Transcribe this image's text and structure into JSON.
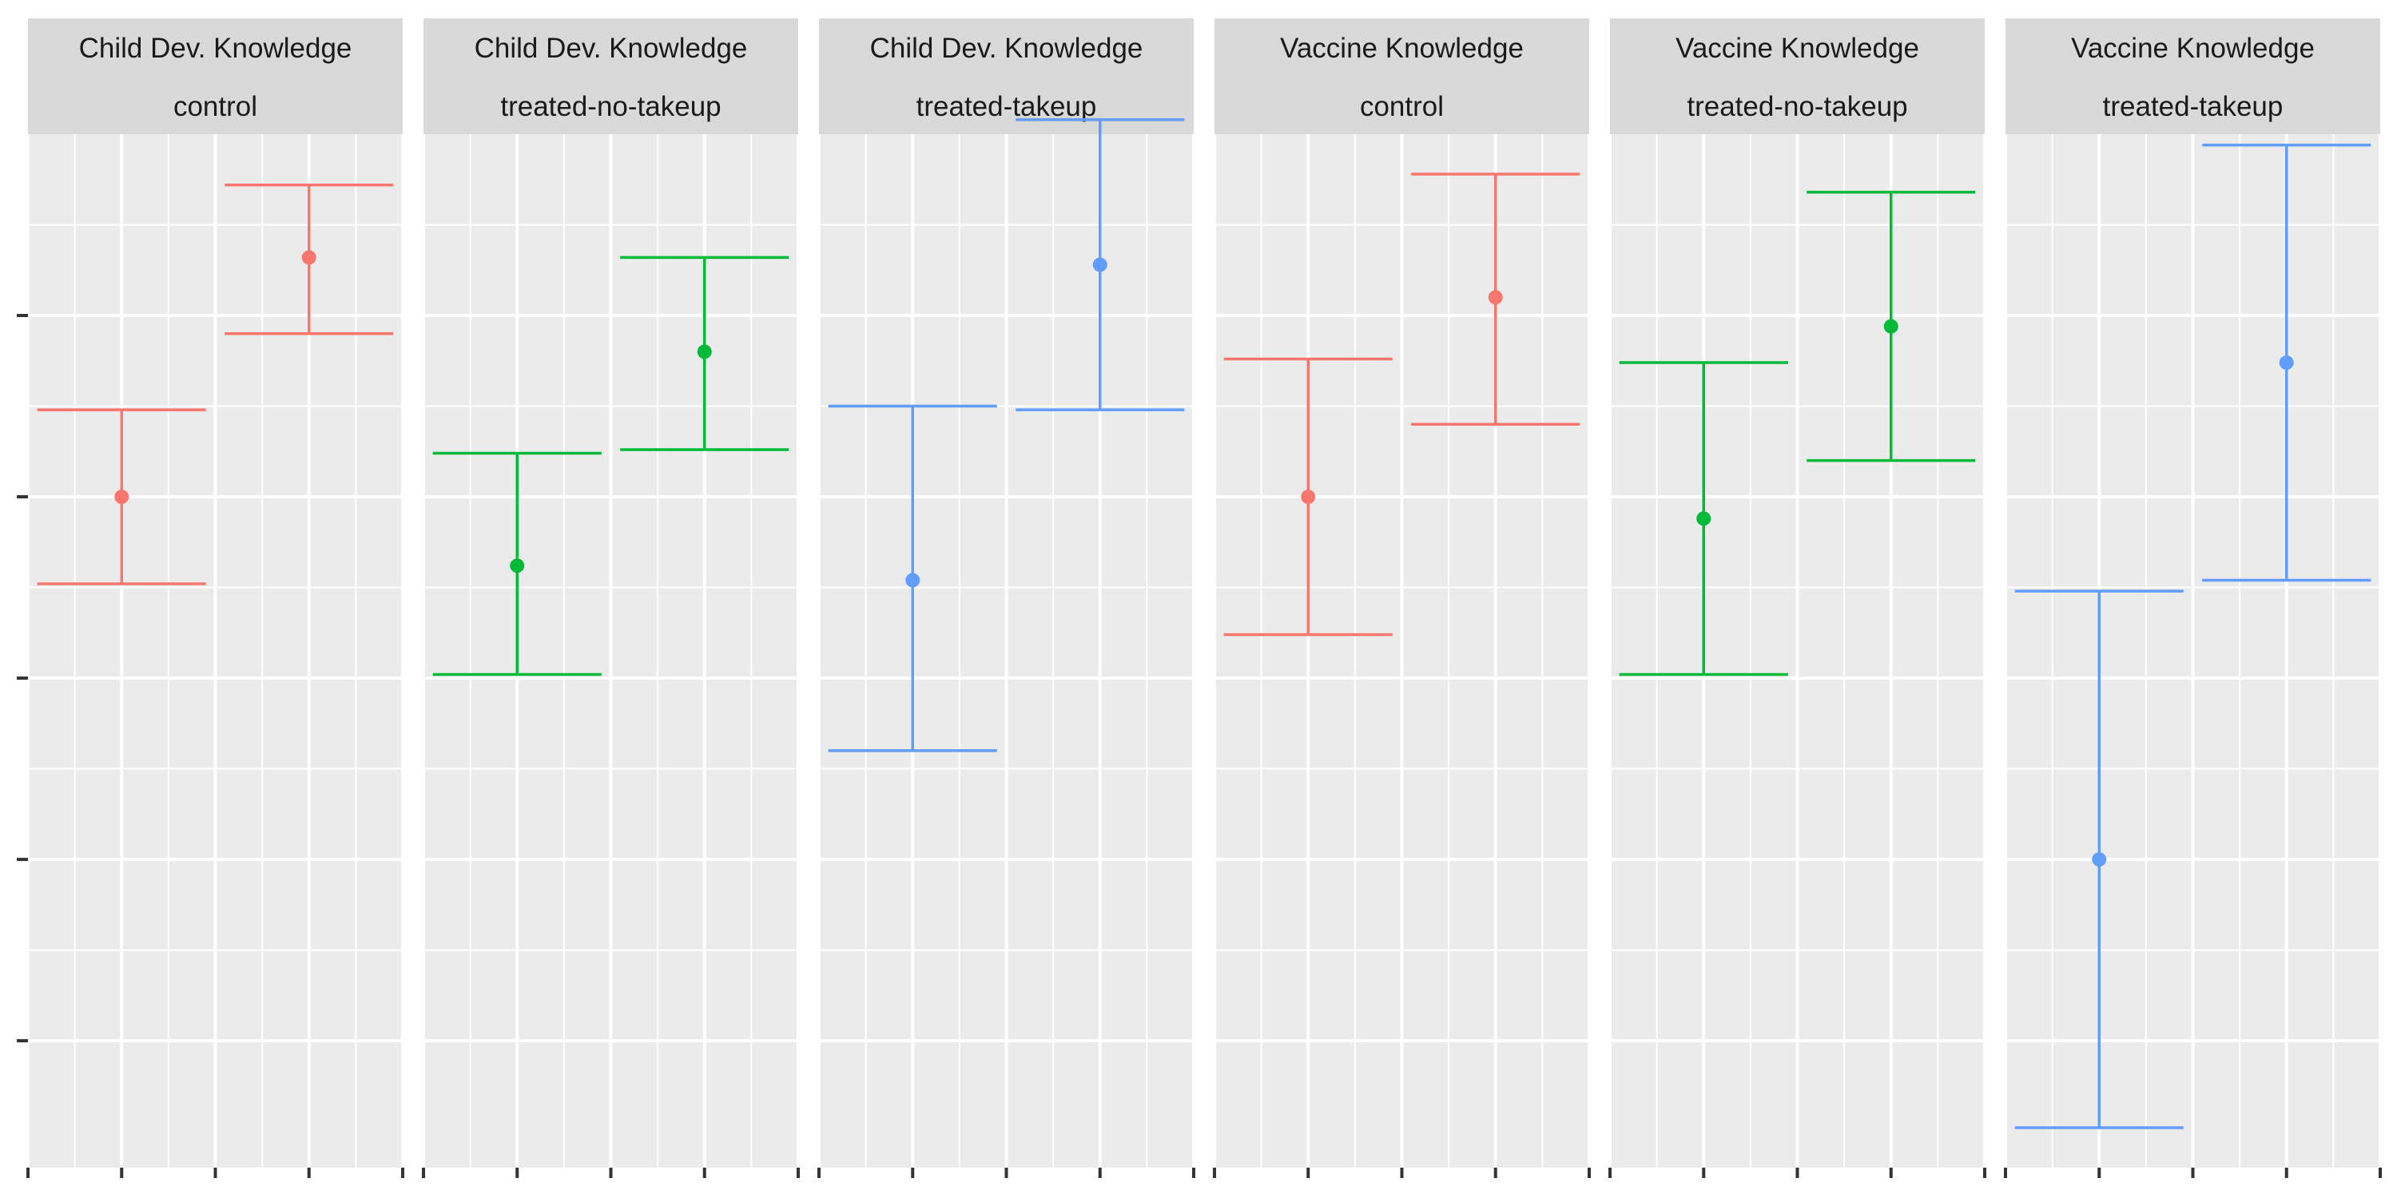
{
  "chart_data": {
    "type": "errorbar",
    "title": "",
    "xlabel": "",
    "ylabel": "",
    "y_tick_labels": [],
    "x_tick_labels": [],
    "legend": "none",
    "grid": true,
    "ylim": [
      -1.85,
      1.0
    ],
    "panels": [
      {
        "strip_top": "Child Dev. Knowledge",
        "strip_bottom": "control",
        "color": "#F8766D",
        "points": [
          {
            "x": 1,
            "y": 0.0,
            "ymin": -0.24,
            "ymax": 0.24
          },
          {
            "x": 2,
            "y": 0.66,
            "ymin": 0.45,
            "ymax": 0.86
          }
        ]
      },
      {
        "strip_top": "Child Dev. Knowledge",
        "strip_bottom": "treated-no-takeup",
        "color": "#00BA38",
        "points": [
          {
            "x": 1,
            "y": -0.19,
            "ymin": -0.49,
            "ymax": 0.12
          },
          {
            "x": 2,
            "y": 0.4,
            "ymin": 0.13,
            "ymax": 0.66
          }
        ]
      },
      {
        "strip_top": "Child Dev. Knowledge",
        "strip_bottom": "treated-takeup",
        "color": "#619CFF",
        "points": [
          {
            "x": 1,
            "y": -0.23,
            "ymin": -0.7,
            "ymax": 0.25
          },
          {
            "x": 2,
            "y": 0.64,
            "ymin": 0.24,
            "ymax": 1.04
          }
        ]
      },
      {
        "strip_top": "Vaccine Knowledge",
        "strip_bottom": "control",
        "color": "#F8766D",
        "points": [
          {
            "x": 1,
            "y": 0.0,
            "ymin": -0.38,
            "ymax": 0.38
          },
          {
            "x": 2,
            "y": 0.55,
            "ymin": 0.2,
            "ymax": 0.89
          }
        ]
      },
      {
        "strip_top": "Vaccine Knowledge",
        "strip_bottom": "treated-no-takeup",
        "color": "#00BA38",
        "points": [
          {
            "x": 1,
            "y": -0.06,
            "ymin": -0.49,
            "ymax": 0.37
          },
          {
            "x": 2,
            "y": 0.47,
            "ymin": 0.1,
            "ymax": 0.84
          }
        ]
      },
      {
        "strip_top": "Vaccine Knowledge",
        "strip_bottom": "treated-takeup",
        "color": "#619CFF",
        "points": [
          {
            "x": 1,
            "y": -1.0,
            "ymin": -1.74,
            "ymax": -0.26
          },
          {
            "x": 2,
            "y": 0.37,
            "ymin": -0.23,
            "ymax": 0.97
          }
        ]
      }
    ]
  }
}
